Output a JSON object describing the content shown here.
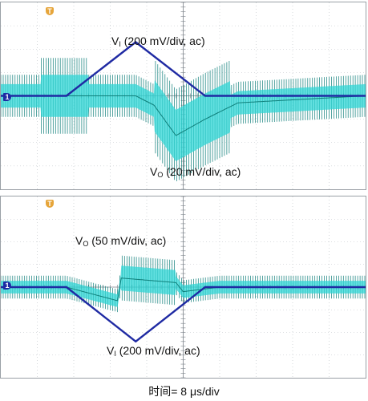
{
  "caption": "时间= 8 μs/div",
  "colors": {
    "vi": "#1f2aa3",
    "vo_dark": "#0f7f7a",
    "vo_light": "#2fd6d6",
    "grid": "#b9bec4",
    "trigger": "#e6a53a"
  },
  "markers": {
    "trigger_symbol": "T",
    "ground_symbol": "1"
  },
  "chart_data": [
    {
      "type": "line",
      "panel": "top",
      "divisions": {
        "x": 10,
        "y": 8
      },
      "grid": true,
      "series": [
        {
          "name_sub": "I",
          "label": "(200 mV/div, ac)",
          "x": [
            0,
            1.8,
            3.7,
            5.6,
            10
          ],
          "y": [
            0,
            0,
            2.3,
            0,
            0
          ]
        },
        {
          "name_sub": "O",
          "label": "(20 mV/div, ac)",
          "x": [
            0,
            1.8,
            3.7,
            4.2,
            4.8,
            5.6,
            6.5,
            10
          ],
          "y": [
            0,
            0,
            0,
            -0.4,
            -1.7,
            -1.0,
            -0.3,
            0
          ]
        }
      ]
    },
    {
      "type": "line",
      "panel": "bottom",
      "divisions": {
        "x": 10,
        "y": 8
      },
      "grid": true,
      "series": [
        {
          "name_sub": "O",
          "label": "(50 mV/div, ac)",
          "x": [
            0,
            1.8,
            3.2,
            3.3,
            4.8,
            5.0,
            6.0,
            10
          ],
          "y": [
            0,
            0,
            -0.6,
            0.4,
            0.2,
            -0.2,
            0,
            0
          ]
        },
        {
          "name_sub": "I",
          "label": "(200 mV/div, ac)",
          "x": [
            0,
            1.8,
            3.7,
            5.6,
            10
          ],
          "y": [
            0,
            0,
            -2.4,
            0,
            0
          ]
        }
      ]
    }
  ]
}
